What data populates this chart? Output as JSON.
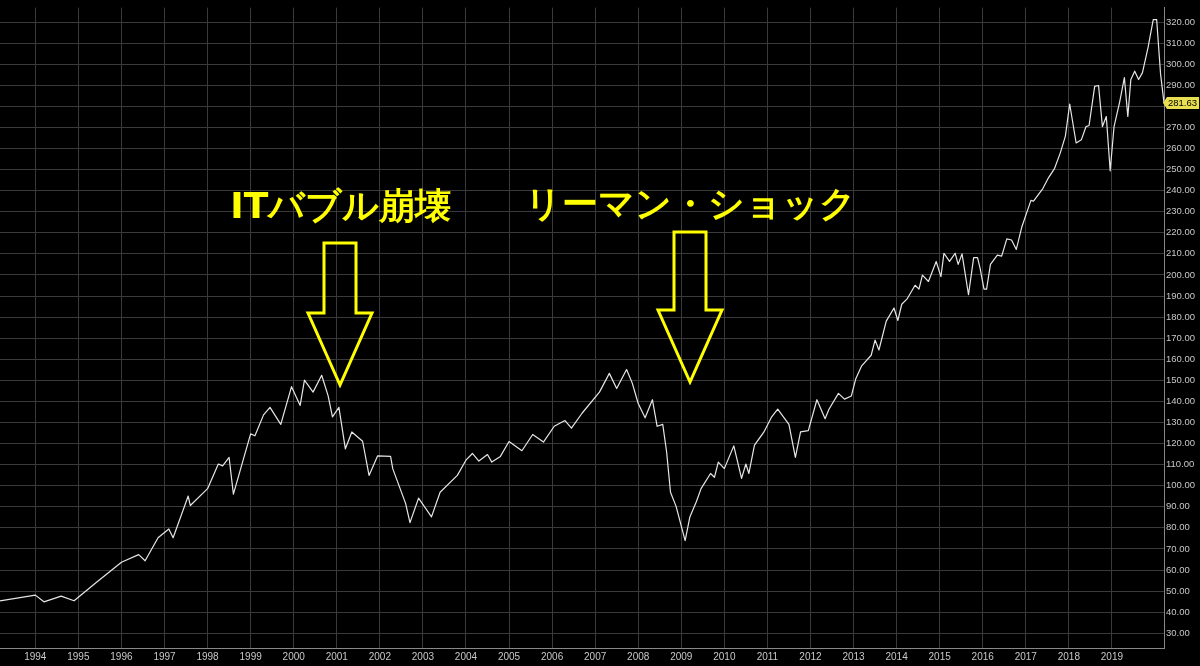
{
  "chart_data": {
    "type": "line",
    "x": [
      1993.18,
      1994.0,
      1994.2,
      1994.6,
      1994.9,
      1995.4,
      1996.0,
      1996.4,
      1996.55,
      1996.85,
      1997.1,
      1997.2,
      1997.55,
      1997.6,
      1998.0,
      1998.25,
      1998.35,
      1998.5,
      1998.6,
      1999.0,
      1999.1,
      1999.3,
      1999.45,
      1999.7,
      1999.95,
      2000.15,
      2000.25,
      2000.45,
      2000.65,
      2000.8,
      2000.9,
      2001.05,
      2001.2,
      2001.35,
      2001.6,
      2001.75,
      2001.95,
      2002.25,
      2002.3,
      2002.6,
      2002.7,
      2002.9,
      2003.2,
      2003.4,
      2003.8,
      2004.0,
      2004.15,
      2004.3,
      2004.5,
      2004.6,
      2004.8,
      2005.0,
      2005.3,
      2005.55,
      2005.8,
      2006.05,
      2006.3,
      2006.45,
      2006.7,
      2007.1,
      2007.33,
      2007.5,
      2007.73,
      2007.86,
      2008.0,
      2008.16,
      2008.33,
      2008.44,
      2008.57,
      2008.66,
      2008.75,
      2008.88,
      2009.09,
      2009.2,
      2009.35,
      2009.46,
      2009.68,
      2009.77,
      2009.86,
      2010.0,
      2010.22,
      2010.4,
      2010.5,
      2010.57,
      2010.7,
      2010.92,
      2011.1,
      2011.24,
      2011.5,
      2011.65,
      2011.77,
      2011.95,
      2012.15,
      2012.34,
      2012.43,
      2012.65,
      2012.79,
      2012.95,
      2013.05,
      2013.19,
      2013.41,
      2013.5,
      2013.59,
      2013.76,
      2013.94,
      2014.03,
      2014.12,
      2014.25,
      2014.43,
      2014.52,
      2014.6,
      2014.74,
      2014.92,
      2015.03,
      2015.1,
      2015.23,
      2015.36,
      2015.43,
      2015.52,
      2015.67,
      2015.79,
      2015.88,
      2015.94,
      2016.03,
      2016.09,
      2016.18,
      2016.34,
      2016.44,
      2016.56,
      2016.67,
      2016.78,
      2016.91,
      2017.12,
      2017.18,
      2017.4,
      2017.53,
      2017.67,
      2017.8,
      2017.92,
      2018.02,
      2018.17,
      2018.29,
      2018.4,
      2018.47,
      2018.6,
      2018.69,
      2018.78,
      2018.87,
      2018.96,
      2019.05,
      2019.18,
      2019.29,
      2019.37,
      2019.44,
      2019.53,
      2019.62,
      2019.71,
      2019.84,
      2019.96,
      2020.04,
      2020.13,
      2020.21
    ],
    "series": [
      {
        "color": "#e6e6e6",
        "values": [
          45.4,
          48.1,
          44.9,
          47.6,
          45.4,
          53.8,
          63.7,
          67.3,
          64.4,
          75.3,
          79.5,
          75.3,
          95.1,
          90.6,
          98.6,
          110.3,
          109.4,
          113.4,
          96,
          124.6,
          123.7,
          133.6,
          137.2,
          129.1,
          147,
          138.1,
          150.1,
          144.4,
          152.4,
          142.6,
          132.7,
          137.2,
          117.5,
          125.5,
          121.1,
          104.9,
          114.2,
          113.9,
          108.1,
          91.5,
          82.5,
          94.1,
          85.2,
          96.9,
          104.9,
          112.1,
          115.3,
          111.7,
          114.8,
          111.2,
          113.9,
          121,
          116.6,
          124.3,
          120.7,
          128.2,
          130.9,
          127.3,
          134.5,
          144.4,
          153.3,
          146.1,
          155.1,
          148.8,
          139,
          132.2,
          140.8,
          128.2,
          129.1,
          116,
          96.9,
          90.2,
          73.9,
          85.2,
          92.4,
          98.6,
          105.8,
          104,
          111.2,
          108.1,
          118.9,
          103.5,
          110.3,
          105.8,
          119.3,
          125.5,
          132.7,
          136.3,
          129.1,
          113.4,
          125.5,
          126.1,
          140.8,
          131.8,
          136.3,
          143.8,
          141.1,
          142.6,
          150.6,
          156.9,
          161.9,
          169.1,
          164.4,
          178.1,
          184.3,
          178.4,
          186.1,
          188.8,
          195.1,
          193.3,
          199.9,
          196.9,
          206.4,
          199.2,
          210.3,
          206.4,
          210.3,
          205,
          210,
          190.6,
          208.2,
          208.2,
          203.1,
          193.3,
          193.3,
          205,
          209.4,
          208.9,
          217.1,
          216.6,
          212.1,
          222.9,
          235.4,
          235,
          241.1,
          246.2,
          250.6,
          257.8,
          265.9,
          281.1,
          262.6,
          264.1,
          270.4,
          270.9,
          289.5,
          289.9,
          270.4,
          275.2,
          249.4,
          270.4,
          282,
          293.6,
          275.2,
          292.7,
          296.7,
          292.7,
          296,
          308,
          321.1,
          321.1,
          295.4,
          281.63
        ],
        "value_labels": [
          null,
          null,
          null,
          null,
          null,
          null,
          null,
          null,
          null,
          null,
          null,
          null,
          null,
          null,
          null,
          null,
          null,
          null,
          null,
          null,
          null,
          null,
          null,
          null,
          null,
          null,
          null,
          null,
          null,
          null,
          null,
          null,
          null,
          null,
          null,
          null,
          null,
          null,
          null,
          null,
          null,
          null,
          null,
          null,
          null,
          null,
          null,
          null,
          null,
          null,
          null,
          null,
          null,
          null,
          null,
          null,
          null,
          null,
          null,
          null,
          null,
          null,
          null,
          null,
          null,
          null,
          null,
          null,
          null,
          null,
          null,
          null,
          null,
          null,
          null,
          null,
          null,
          null,
          null,
          null,
          null,
          null,
          null,
          null,
          null,
          null,
          null,
          null,
          null,
          null,
          null,
          null,
          null,
          null,
          null,
          null,
          null,
          null,
          null,
          null,
          null,
          null,
          null,
          null,
          null,
          null,
          null,
          null,
          null,
          null,
          null,
          null,
          null,
          null,
          null,
          null,
          null,
          null,
          null,
          null,
          null,
          null,
          null,
          null,
          null,
          null,
          null,
          null,
          null,
          null,
          null,
          null,
          null,
          null,
          null,
          null,
          null,
          null,
          null,
          null,
          null,
          null,
          null,
          null,
          null,
          null,
          null,
          null,
          null,
          null,
          null,
          null,
          null,
          null,
          null,
          null,
          null,
          null,
          null,
          null,
          null,
          "281.63"
        ]
      }
    ],
    "xlim": [
      1993.18,
      2020.21
    ],
    "xticks": [
      1994,
      1995,
      1996,
      1997,
      1998,
      1999,
      2000,
      2001,
      2002,
      2003,
      2004,
      2005,
      2006,
      2007,
      2008,
      2009,
      2010,
      2011,
      2012,
      2013,
      2014,
      2015,
      2016,
      2017,
      2018,
      2019
    ],
    "ylim": [
      23,
      326.8
    ],
    "yticks": [
      {
        "value": 30,
        "label": "30.00"
      },
      {
        "value": 40,
        "label": "40.00"
      },
      {
        "value": 50,
        "label": "50.00"
      },
      {
        "value": 60,
        "label": "60.00"
      },
      {
        "value": 70,
        "label": "70.00"
      },
      {
        "value": 80,
        "label": "80.00"
      },
      {
        "value": 90,
        "label": "90.00"
      },
      {
        "value": 100,
        "label": "100.00"
      },
      {
        "value": 110,
        "label": "110.00"
      },
      {
        "value": 120,
        "label": "120.00"
      },
      {
        "value": 130,
        "label": "130.00"
      },
      {
        "value": 140,
        "label": "140.00"
      },
      {
        "value": 150,
        "label": "150.00"
      },
      {
        "value": 160,
        "label": "160.00"
      },
      {
        "value": 170,
        "label": "170.00"
      },
      {
        "value": 180,
        "label": "180.00"
      },
      {
        "value": 190,
        "label": "190.00"
      },
      {
        "value": 200,
        "label": "200.00"
      },
      {
        "value": 210,
        "label": "210.00"
      },
      {
        "value": 220,
        "label": "220.00"
      },
      {
        "value": 230,
        "label": "230.00"
      },
      {
        "value": 240,
        "label": "240.00"
      },
      {
        "value": 250,
        "label": "250.00"
      },
      {
        "value": 260,
        "label": "260.00"
      },
      {
        "value": 270,
        "label": "270.00"
      },
      {
        "value": 280,
        "label": null
      },
      {
        "value": 290,
        "label": "290.00"
      },
      {
        "value": 300,
        "label": "300.00"
      },
      {
        "value": 310,
        "label": "310.00"
      },
      {
        "value": 320,
        "label": "320.00"
      }
    ],
    "grid": true,
    "marker": "none",
    "line_style": "solid",
    "annotations": [
      "ITバブル崩壊",
      "リーマン・ショック"
    ]
  }
}
